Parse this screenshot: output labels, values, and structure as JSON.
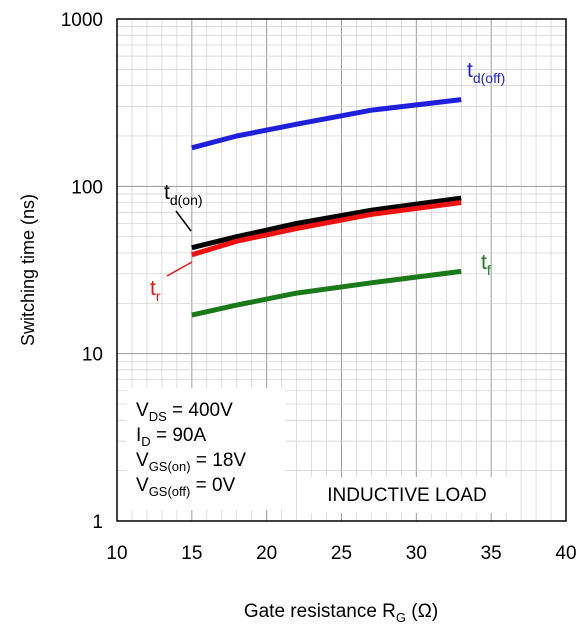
{
  "chart_data": {
    "type": "line",
    "xlabel": {
      "main": "Gate resistance R",
      "sub": "G",
      "unit": " (Ω)"
    },
    "ylabel": "Switching time (ns)",
    "xlim": [
      10,
      40
    ],
    "ylim": [
      1,
      1000
    ],
    "yscale": "log",
    "grid": true,
    "x_ticks": [
      "10",
      "15",
      "20",
      "25",
      "30",
      "35",
      "40"
    ],
    "y_ticks": [
      "1",
      "10",
      "100",
      "1000"
    ],
    "series": [
      {
        "name": "t_d(off)",
        "label_main": "t",
        "label_sub": "d(off)",
        "color": "#1f1fdc",
        "x": [
          15,
          18,
          22,
          27,
          33
        ],
        "y": [
          170,
          200,
          235,
          285,
          330
        ]
      },
      {
        "name": "t_d(on)",
        "label_main": "t",
        "label_sub": "d(on)",
        "color": "#000000",
        "x": [
          15,
          18,
          22,
          27,
          33
        ],
        "y": [
          43,
          50,
          60,
          72,
          85
        ]
      },
      {
        "name": "t_r",
        "label_main": "t",
        "label_sub": "r",
        "color": "#ee1111",
        "x": [
          15,
          18,
          22,
          27,
          33
        ],
        "y": [
          39,
          47,
          56,
          68,
          80
        ]
      },
      {
        "name": "t_f",
        "label_main": "t",
        "label_sub": "f",
        "color": "#1a7a1a",
        "x": [
          15,
          18,
          22,
          27,
          33
        ],
        "y": [
          17,
          19.5,
          23,
          26.5,
          31
        ]
      }
    ],
    "conditions": [
      {
        "main": "V",
        "sub": "DS",
        "value": " = 400V"
      },
      {
        "main": "I",
        "sub": "D",
        "value": " = 90A"
      },
      {
        "main": "V",
        "sub": "GS(on)",
        "value": " = 18V"
      },
      {
        "main": "V",
        "sub": "GS(off)",
        "value": " = 0V"
      }
    ],
    "annotation": "INDUCTIVE LOAD"
  }
}
